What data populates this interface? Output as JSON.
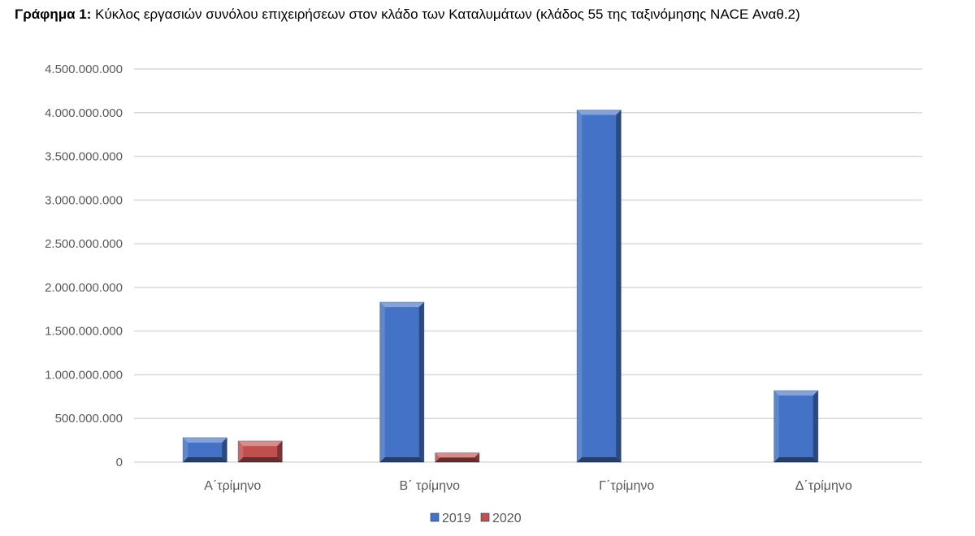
{
  "chart_data": {
    "type": "bar",
    "title_prefix": "Γράφημα 1:",
    "title": "Κύκλος εργασιών συνόλου επιχειρήσεων στον κλάδο των Καταλυμάτων (κλάδος 55 της ταξινόμησης NACE Αναθ.2)",
    "xlabel": "",
    "ylabel": "",
    "categories": [
      "Α΄τρίμηνο",
      "Β΄ τρίμηνο",
      "Γ΄τρίμηνο",
      "Δ΄τρίμηνο"
    ],
    "series": [
      {
        "name": "2019",
        "color": "#4472C4",
        "values": [
          279000000,
          1830000000,
          4030000000,
          818000000
        ]
      },
      {
        "name": "2020",
        "color": "#C0504D",
        "values": [
          241000000,
          105000000,
          null,
          null
        ]
      }
    ],
    "ylim": [
      0,
      4500000000
    ],
    "yticks": [
      0,
      500000000,
      1000000000,
      1500000000,
      2000000000,
      2500000000,
      3000000000,
      3500000000,
      4000000000,
      4500000000
    ],
    "ytick_labels": [
      "0",
      "500.000.000",
      "1.000.000.000",
      "1.500.000.000",
      "2.000.000.000",
      "2.500.000.000",
      "3.000.000.000",
      "3.500.000.000",
      "4.000.000.000",
      "4.500.000.000"
    ],
    "grid": true,
    "legend_position": "bottom",
    "style": "bevelled 3D bars"
  }
}
